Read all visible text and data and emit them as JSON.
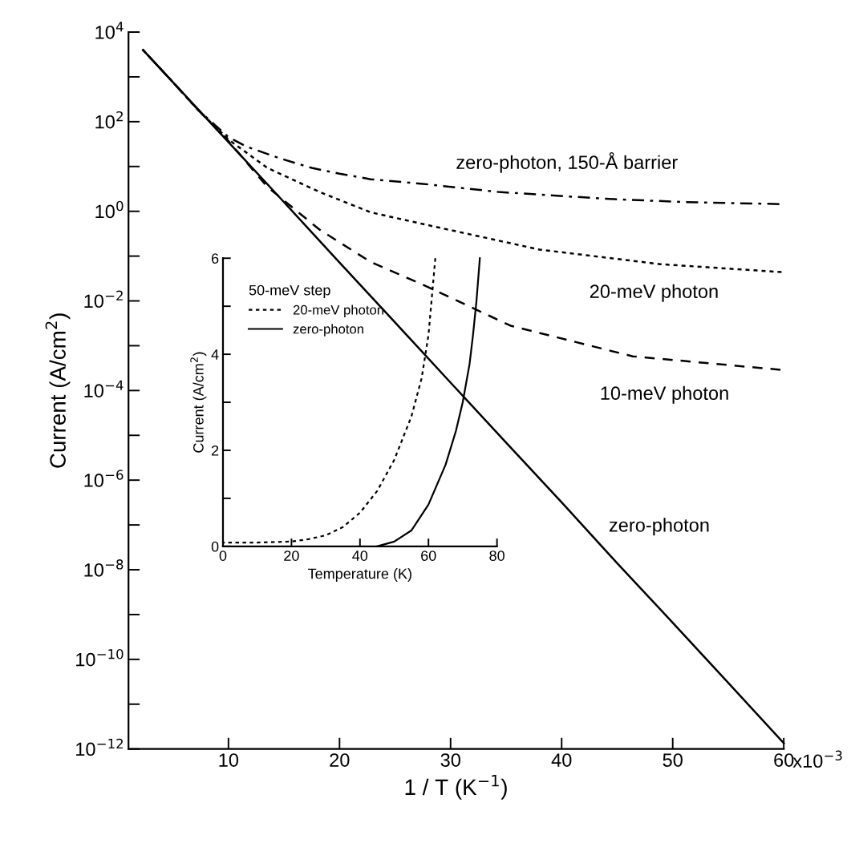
{
  "chart_data": [
    {
      "type": "line",
      "xlabel": "1 / T (K$^{−1}$)",
      "ylabel": "Current (A/cm$^{2}$)",
      "log": "y",
      "xlim": [
        1,
        60
      ],
      "ylim": [
        1e-12,
        10000.0
      ],
      "xticks": [
        10,
        20,
        30,
        40,
        50,
        60
      ],
      "yticks": [
        {
          "value": 1e-12,
          "label": "10$^{−12}$"
        },
        {
          "value": 1e-11,
          "label": null
        },
        {
          "value": 1e-10,
          "label": "10$^{−10}$"
        },
        {
          "value": 1e-09,
          "label": null
        },
        {
          "value": 1e-08,
          "label": "10$^{−8}$"
        },
        {
          "value": 1e-07,
          "label": null
        },
        {
          "value": 1e-06,
          "label": "10$^{−6}$"
        },
        {
          "value": 1e-05,
          "label": null
        },
        {
          "value": 0.0001,
          "label": "10$^{−4}$"
        },
        {
          "value": 0.001,
          "label": null
        },
        {
          "value": 0.01,
          "label": "10$^{−2}$"
        },
        {
          "value": 0.1,
          "label": null
        },
        {
          "value": 1,
          "label": "10$^{0}$"
        },
        {
          "value": 10,
          "label": null
        },
        {
          "value": 100,
          "label": "10$^{2}$"
        },
        {
          "value": 1000,
          "label": null
        },
        {
          "value": 10000.0,
          "label": "10$^{4}$"
        }
      ],
      "annotations": [
        "x10$^{−3}$"
      ],
      "grid": false,
      "legend": false,
      "series": [
        {
          "name": "zero-photon, 150-Å barrier",
          "color": "#000000",
          "line_style": "dashdot",
          "x": [
            2.3,
            5,
            7.2,
            10,
            11.6,
            14.7,
            17.5,
            20,
            22.8,
            27.5,
            34.3,
            44,
            51.2,
            59.6
          ],
          "values": [
            4000,
            760,
            190,
            45,
            28,
            15,
            9.3,
            6.9,
            5.2,
            4.1,
            2.7,
            1.9,
            1.6,
            1.45
          ]
        },
        {
          "name": "20-meV photon",
          "color": "#000000",
          "line_style": "dotted",
          "x": [
            2.3,
            5,
            7.2,
            10,
            13.5,
            18.2,
            22.8,
            27.5,
            38,
            48.9,
            59.8
          ],
          "values": [
            4000,
            760,
            190,
            40,
            9.3,
            2.7,
            0.95,
            0.52,
            0.14,
            0.066,
            0.044
          ]
        },
        {
          "name": "10-meV photon",
          "color": "#000000",
          "line_style": "dashed",
          "x": [
            2.3,
            5,
            7.2,
            10,
            13.5,
            18.2,
            22.8,
            27.5,
            35.4,
            46.4,
            59.7
          ],
          "values": [
            4000,
            760,
            190,
            37,
            3.5,
            0.39,
            0.074,
            0.023,
            0.0028,
            0.00058,
            0.00029
          ]
        },
        {
          "name": "zero-photon",
          "color": "#000000",
          "line_style": "solid",
          "x": [
            2.3,
            5,
            10,
            15,
            20,
            25,
            30,
            35,
            40,
            45,
            50,
            55,
            60
          ],
          "values": [
            4000,
            760,
            35,
            1.6,
            0.072,
            0.0033,
            0.00015,
            6.9e-06,
            3.2e-07,
            1.4e-08,
            6.6e-10,
            3e-11,
            1.35e-12
          ]
        }
      ]
    },
    {
      "type": "line",
      "xlabel": "Temperature (K)",
      "ylabel": "Current (A/cm$^{2}$)",
      "xlim": [
        0,
        80
      ],
      "ylim": [
        0,
        6
      ],
      "xticks": [
        0,
        20,
        40,
        60,
        80
      ],
      "yticks": [
        0,
        {
          "value": 1,
          "label": null
        },
        2,
        {
          "value": 3,
          "label": null
        },
        4,
        {
          "value": 5,
          "label": null
        },
        6
      ],
      "grid": false,
      "legend": "top left",
      "legend_title": "50-meV step",
      "series": [
        {
          "name": "20-meV photon",
          "color": "#000000",
          "line_style": "dotted",
          "x": [
            0,
            10,
            20,
            25,
            30,
            35,
            40,
            45,
            50,
            55,
            58,
            60,
            62
          ],
          "values": [
            0.08,
            0.08,
            0.1,
            0.15,
            0.23,
            0.4,
            0.7,
            1.15,
            1.8,
            2.7,
            3.5,
            4.4,
            6
          ]
        },
        {
          "name": "zero-photon",
          "color": "#000000",
          "line_style": "solid",
          "x": [
            45,
            50,
            55,
            60,
            65,
            68,
            70,
            72,
            73,
            74,
            75
          ],
          "values": [
            0,
            0.1,
            0.33,
            0.87,
            1.7,
            2.4,
            3.0,
            3.8,
            4.4,
            5.1,
            6
          ]
        }
      ]
    }
  ]
}
